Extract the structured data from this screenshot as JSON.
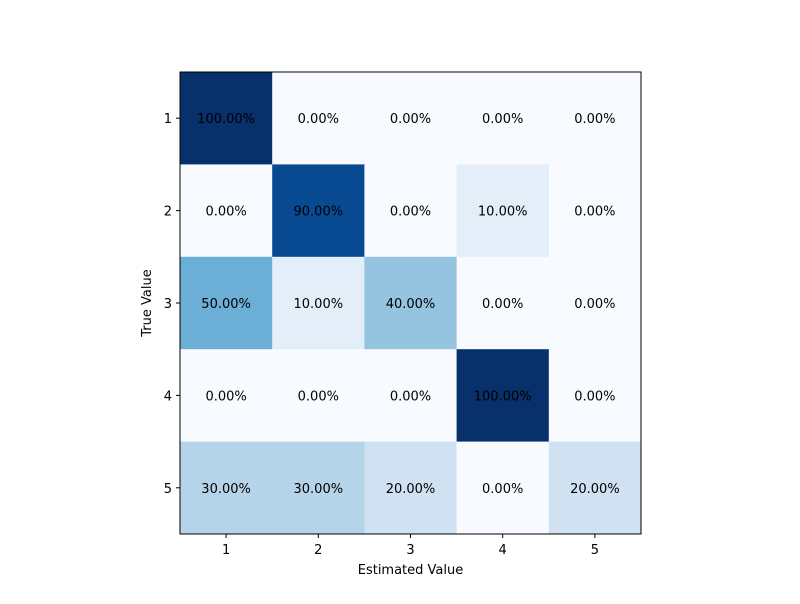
{
  "chart_data": {
    "type": "heatmap",
    "title": "",
    "xlabel": "Estimated Value",
    "ylabel": "True Value",
    "x_categories": [
      "1",
      "2",
      "3",
      "4",
      "5"
    ],
    "y_categories": [
      "1",
      "2",
      "3",
      "4",
      "5"
    ],
    "values": [
      [
        100.0,
        0.0,
        0.0,
        0.0,
        0.0
      ],
      [
        0.0,
        90.0,
        0.0,
        10.0,
        0.0
      ],
      [
        50.0,
        10.0,
        40.0,
        0.0,
        0.0
      ],
      [
        0.0,
        0.0,
        0.0,
        100.0,
        0.0
      ],
      [
        30.0,
        30.0,
        20.0,
        0.0,
        20.0
      ]
    ],
    "cell_labels": [
      [
        "100.00%",
        "0.00%",
        "0.00%",
        "0.00%",
        "0.00%"
      ],
      [
        "0.00%",
        "90.00%",
        "0.00%",
        "10.00%",
        "0.00%"
      ],
      [
        "50.00%",
        "10.00%",
        "40.00%",
        "0.00%",
        "0.00%"
      ],
      [
        "0.00%",
        "0.00%",
        "0.00%",
        "100.00%",
        "0.00%"
      ],
      [
        "30.00%",
        "30.00%",
        "20.00%",
        "0.00%",
        "20.00%"
      ]
    ],
    "value_range": [
      0,
      100
    ],
    "colormap": "Blues",
    "grid": false,
    "legend": "none"
  }
}
